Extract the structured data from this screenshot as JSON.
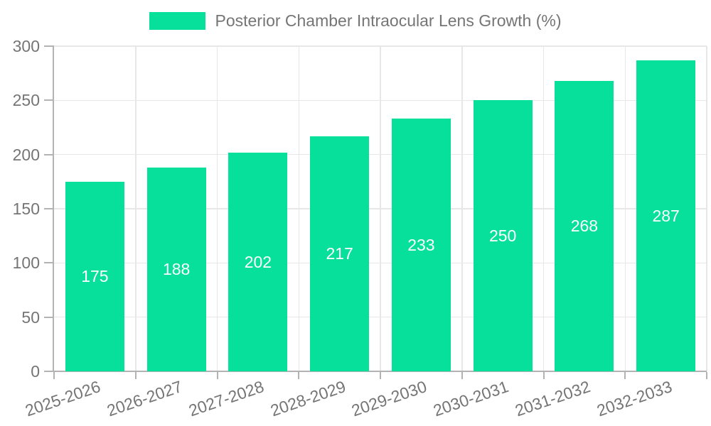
{
  "legend": {
    "label": "Posterior Chamber Intraocular Lens Growth (%)"
  },
  "colors": {
    "bar": "#06E09A",
    "grid": "#e7e7e7",
    "axis": "#b3b3b3",
    "tick": "#b3b3b3",
    "text": "#757575",
    "value_label": "#ffffff",
    "background": "#ffffff"
  },
  "chart_data": {
    "type": "bar",
    "title": "Posterior Chamber Intraocular Lens Growth (%)",
    "categories": [
      "2025-2026",
      "2026-2027",
      "2027-2028",
      "2028-2029",
      "2029-2030",
      "2030-2031",
      "2031-2032",
      "2032-2033"
    ],
    "values": [
      175,
      188,
      202,
      217,
      233,
      250,
      268,
      287
    ],
    "xlabel": "",
    "ylabel": "",
    "ylim": [
      0,
      300
    ],
    "yticks": [
      0,
      50,
      100,
      150,
      200,
      250,
      300
    ],
    "ytick_labels": [
      "0",
      "50",
      "100",
      "150",
      "200",
      "250",
      "300"
    ],
    "grid": true,
    "legend_position": "top",
    "value_label_position": "inside-center",
    "xtick_rotation_deg": -19
  }
}
